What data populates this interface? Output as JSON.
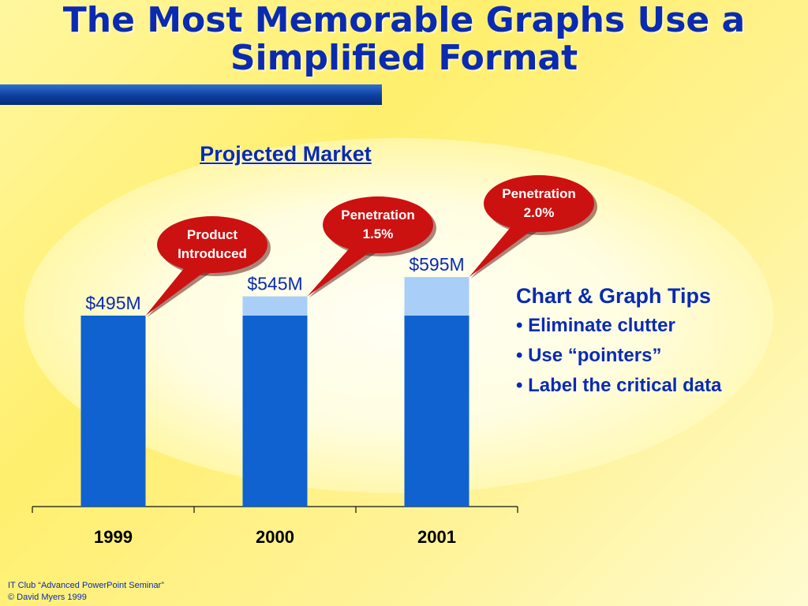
{
  "title": {
    "line1": "The Most Memorable Graphs Use a",
    "line2": "Simplified Format"
  },
  "chart_data": {
    "type": "bar",
    "title": "Projected Market",
    "categories": [
      "1999",
      "2000",
      "2001"
    ],
    "values": [
      495,
      545,
      595
    ],
    "value_labels": [
      "$495M",
      "$545M",
      "$595M"
    ],
    "ylim": [
      0,
      600
    ],
    "grid": false,
    "colors": {
      "base": "#0f62cf",
      "increase": "#a9cff8"
    },
    "annotations": [
      {
        "category": "1999",
        "text": [
          "Product",
          "Introduced"
        ]
      },
      {
        "category": "2000",
        "text": [
          "Penetration",
          "1.5%"
        ]
      },
      {
        "category": "2001",
        "text": [
          "Penetration",
          "2.0%"
        ]
      }
    ]
  },
  "tips": {
    "heading": "Chart & Graph Tips",
    "items": [
      "Eliminate clutter",
      "Use “pointers”",
      "Label the critical data"
    ]
  },
  "footer": {
    "line1": "IT Club “Advanced PowerPoint Seminar”",
    "line2": "© David Myers 1999"
  },
  "colors": {
    "title": "#0a2bb0",
    "callout": "#cc1111",
    "bar_dark": "#0f62cf",
    "bar_light": "#a9cff8"
  }
}
